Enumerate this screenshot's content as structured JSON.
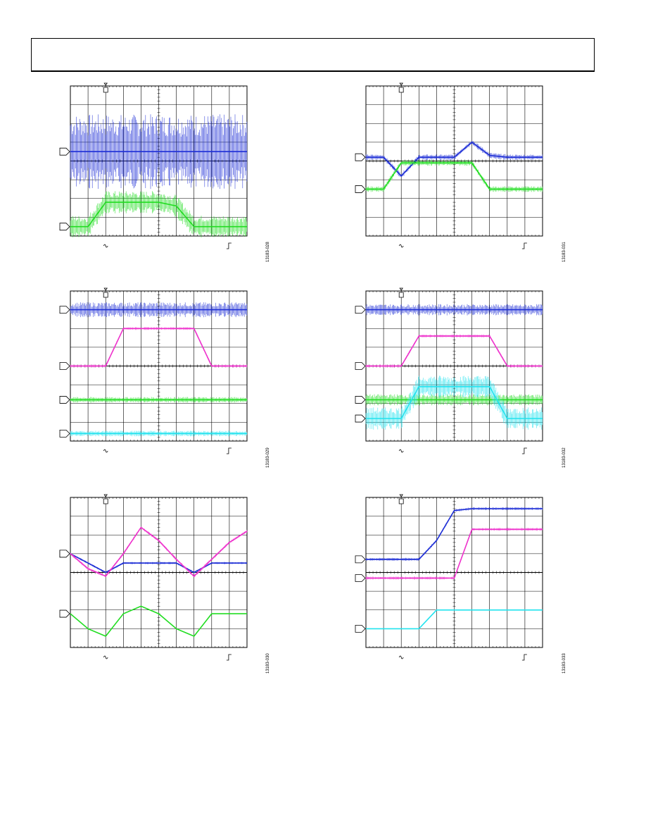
{
  "page": {
    "figure_ids": [
      "13183-028",
      "13183-031",
      "13183-029",
      "13183-032",
      "13183-030",
      "13183-033"
    ]
  },
  "colors": {
    "ch1": "#1f2fd6",
    "ch2_green": "#22dd22",
    "ch2_magenta": "#ee33cc",
    "ch3": "#22e3ee",
    "grid": "#000000"
  },
  "chart_data": [
    {
      "type": "line",
      "panel": "top-left",
      "x": [
        0,
        1,
        2,
        3,
        4,
        5,
        6,
        7,
        8,
        9,
        10
      ],
      "series": [
        {
          "values": [
            0.5,
            0.5,
            0.5,
            0.5,
            0.5,
            0.5,
            0.5,
            0.5,
            0.5,
            0.5,
            0.5
          ]
        },
        {
          "values": [
            -3.5,
            -3.5,
            -2.2,
            -2.2,
            -2.2,
            -2.2,
            -2.4,
            -3.5,
            -3.5,
            -3.5,
            -3.5
          ]
        }
      ],
      "ylim": [
        -4,
        4
      ],
      "xlim": [
        0,
        10
      ],
      "grid": true
    },
    {
      "type": "line",
      "panel": "top-right",
      "x": [
        0,
        1,
        2,
        3,
        4,
        5,
        6,
        7,
        8,
        9,
        10
      ],
      "series": [
        {
          "values": [
            0.2,
            0.2,
            -0.8,
            0.2,
            0.2,
            0.2,
            1.0,
            0.3,
            0.2,
            0.2,
            0.2
          ]
        },
        {
          "values": [
            -1.5,
            -1.5,
            -0.1,
            -0.1,
            -0.1,
            -0.1,
            -0.1,
            -1.5,
            -1.5,
            -1.5,
            -1.5
          ]
        }
      ],
      "ylim": [
        -4,
        4
      ],
      "xlim": [
        0,
        10
      ],
      "grid": true
    },
    {
      "type": "line",
      "panel": "middle-left",
      "x": [
        0,
        1,
        2,
        3,
        4,
        5,
        6,
        7,
        8,
        9,
        10
      ],
      "series": [
        {
          "values": [
            3.0,
            3.0,
            3.0,
            3.0,
            3.0,
            3.0,
            3.0,
            3.0,
            3.0,
            3.0,
            3.0
          ]
        },
        {
          "values": [
            0.0,
            0.0,
            0.0,
            2.0,
            2.0,
            2.0,
            2.0,
            2.0,
            0.0,
            0.0,
            0.0
          ]
        },
        {
          "values": [
            -1.8,
            -1.8,
            -1.8,
            -1.8,
            -1.8,
            -1.8,
            -1.8,
            -1.8,
            -1.8,
            -1.8,
            -1.8
          ]
        },
        {
          "values": [
            -3.6,
            -3.6,
            -3.6,
            -3.6,
            -3.6,
            -3.6,
            -3.6,
            -3.6,
            -3.6,
            -3.6,
            -3.6
          ]
        }
      ],
      "ylim": [
        -4,
        4
      ],
      "xlim": [
        0,
        10
      ],
      "grid": true
    },
    {
      "type": "line",
      "panel": "middle-right",
      "x": [
        0,
        1,
        2,
        3,
        4,
        5,
        6,
        7,
        8,
        9,
        10
      ],
      "series": [
        {
          "values": [
            3.0,
            3.0,
            3.0,
            3.0,
            3.0,
            3.0,
            3.0,
            3.0,
            3.0,
            3.0,
            3.0
          ]
        },
        {
          "values": [
            0.0,
            0.0,
            0.0,
            1.6,
            1.6,
            1.6,
            1.6,
            1.6,
            0.0,
            0.0,
            0.0
          ]
        },
        {
          "values": [
            -1.8,
            -1.8,
            -1.8,
            -1.8,
            -1.8,
            -1.8,
            -1.8,
            -1.8,
            -1.8,
            -1.8,
            -1.8
          ]
        },
        {
          "values": [
            -2.8,
            -2.8,
            -2.8,
            -1.1,
            -1.1,
            -1.1,
            -1.1,
            -1.1,
            -2.8,
            -2.8,
            -2.8
          ]
        }
      ],
      "ylim": [
        -4,
        4
      ],
      "xlim": [
        0,
        10
      ],
      "grid": true
    },
    {
      "type": "line",
      "panel": "bottom-left",
      "x": [
        0,
        1,
        2,
        3,
        4,
        5,
        6,
        7,
        8,
        9,
        10
      ],
      "series": [
        {
          "values": [
            1.0,
            0.5,
            0.0,
            0.5,
            0.5,
            0.5,
            0.5,
            0.0,
            0.5,
            0.5,
            0.5
          ]
        },
        {
          "values": [
            1.0,
            0.2,
            -0.2,
            1.0,
            2.4,
            1.7,
            0.7,
            -0.2,
            0.7,
            1.6,
            2.2
          ]
        },
        {
          "values": [
            -2.2,
            -3.0,
            -3.4,
            -2.2,
            -1.8,
            -2.2,
            -3.0,
            -3.4,
            -2.2,
            -2.2,
            -2.2
          ]
        }
      ],
      "ylim": [
        -4,
        4
      ],
      "xlim": [
        0,
        10
      ],
      "grid": true
    },
    {
      "type": "line",
      "panel": "bottom-right",
      "x": [
        0,
        1,
        2,
        3,
        4,
        5,
        6,
        7,
        8,
        9,
        10
      ],
      "series": [
        {
          "values": [
            0.7,
            0.7,
            0.7,
            0.7,
            1.7,
            3.3,
            3.4,
            3.4,
            3.4,
            3.4,
            3.4
          ]
        },
        {
          "values": [
            -0.3,
            -0.3,
            -0.3,
            -0.3,
            -0.3,
            -0.3,
            2.3,
            2.3,
            2.3,
            2.3,
            2.3
          ]
        },
        {
          "values": [
            -3.0,
            -3.0,
            -3.0,
            -3.0,
            -2.0,
            -2.0,
            -2.0,
            -2.0,
            -2.0,
            -2.0,
            -2.0
          ]
        }
      ],
      "ylim": [
        -4,
        4
      ],
      "xlim": [
        0,
        10
      ],
      "grid": true
    }
  ]
}
